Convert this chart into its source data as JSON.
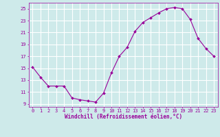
{
  "x": [
    0,
    1,
    2,
    3,
    4,
    5,
    6,
    7,
    8,
    9,
    10,
    11,
    12,
    13,
    14,
    15,
    16,
    17,
    18,
    19,
    20,
    21,
    22,
    23
  ],
  "y": [
    15.2,
    13.5,
    12.0,
    12.0,
    12.0,
    10.0,
    9.7,
    9.5,
    9.3,
    10.8,
    14.2,
    17.0,
    18.5,
    21.2,
    22.7,
    23.5,
    24.3,
    25.0,
    25.2,
    25.0,
    23.2,
    20.0,
    18.3,
    17.0
  ],
  "line_color": "#990099",
  "marker": "D",
  "marker_size": 2,
  "bg_color": "#ceeaea",
  "grid_color": "#ffffff",
  "xlabel": "Windchill (Refroidissement éolien,°C)",
  "xlabel_color": "#990099",
  "tick_color": "#990099",
  "ylabel_ticks": [
    9,
    11,
    13,
    15,
    17,
    19,
    21,
    23,
    25
  ],
  "xlim": [
    -0.5,
    23.5
  ],
  "ylim": [
    8.5,
    26.0
  ],
  "font_family": "monospace"
}
